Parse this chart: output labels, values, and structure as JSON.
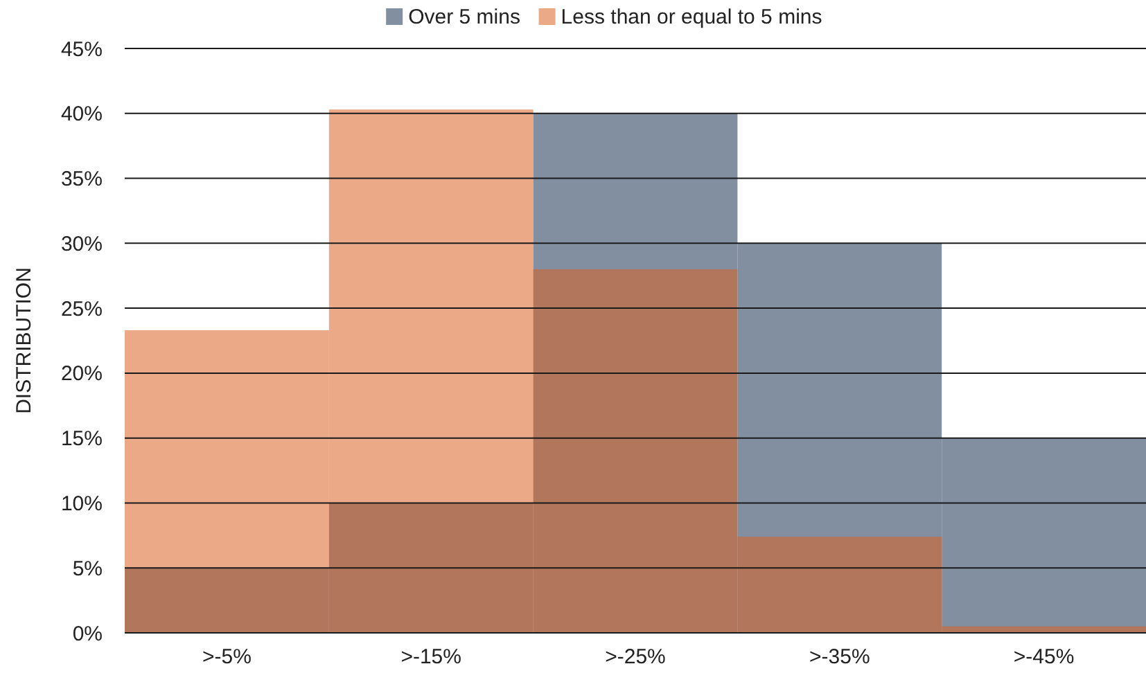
{
  "chart_data": {
    "type": "bar",
    "ylabel": "DISTRIBUTION",
    "categories": [
      ">-5%",
      ">-15%",
      ">-25%",
      ">-35%",
      ">-45%"
    ],
    "series": [
      {
        "name": "Over 5 mins",
        "color": "#818fa1",
        "values": [
          5,
          10,
          40,
          30,
          15
        ]
      },
      {
        "name": "Less than or equal to 5 mins",
        "color": "#eba987",
        "values": [
          23.3,
          40.3,
          28,
          7.4,
          0.5
        ]
      }
    ],
    "ylim": [
      0,
      45
    ],
    "yticks": [
      {
        "value": 0,
        "label": "0%"
      },
      {
        "value": 5,
        "label": "5%"
      },
      {
        "value": 10,
        "label": "10%"
      },
      {
        "value": 15,
        "label": "15%"
      },
      {
        "value": 20,
        "label": "20%"
      },
      {
        "value": 25,
        "label": "25%"
      },
      {
        "value": 30,
        "label": "30%"
      },
      {
        "value": 35,
        "label": "35%"
      },
      {
        "value": 40,
        "label": "40%"
      },
      {
        "value": 45,
        "label": "45%"
      }
    ],
    "grid": "y",
    "legend": "top"
  }
}
